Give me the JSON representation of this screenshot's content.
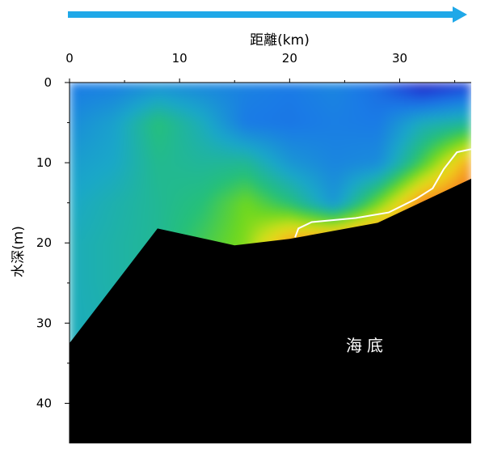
{
  "chart_data": {
    "type": "heatmap",
    "title": "",
    "xlabel": "距離(km)",
    "ylabel": "水深(m)",
    "xlim": [
      0,
      36.5
    ],
    "ylim": [
      0,
      45
    ],
    "x_ticks": [
      0,
      10,
      20,
      30
    ],
    "y_ticks": [
      0,
      10,
      20,
      30,
      40
    ],
    "x_tick_labels": [
      "0",
      "10",
      "20",
      "30"
    ],
    "y_tick_labels": [
      "0",
      "10",
      "20",
      "30",
      "40"
    ],
    "x_axis_position": "top",
    "y_axis_inverted": true,
    "grid": false,
    "direction_arrow": {
      "from_km": 0,
      "to_km": 36.5,
      "color": "#1FA8E8"
    },
    "seabed_label": "海底",
    "seabed_color": "#000000",
    "seabed_profile": [
      {
        "x": 0,
        "depth": 32.5
      },
      {
        "x": 8,
        "depth": 18.2
      },
      {
        "x": 15,
        "depth": 20.3
      },
      {
        "x": 20,
        "depth": 19.5
      },
      {
        "x": 28,
        "depth": 17.5
      },
      {
        "x": 36.5,
        "depth": 12.0
      }
    ],
    "contour_line": {
      "color": "#ffffff",
      "points": [
        {
          "x": 20.5,
          "depth": 19.3
        },
        {
          "x": 20.8,
          "depth": 18.2
        },
        {
          "x": 22,
          "depth": 17.4
        },
        {
          "x": 26,
          "depth": 16.9
        },
        {
          "x": 29,
          "depth": 16.2
        },
        {
          "x": 31.5,
          "depth": 14.5
        },
        {
          "x": 33,
          "depth": 13.2
        },
        {
          "x": 34,
          "depth": 10.8
        },
        {
          "x": 35.2,
          "depth": 8.7
        },
        {
          "x": 36.5,
          "depth": 8.3
        }
      ]
    },
    "colormap": [
      {
        "value": 0.0,
        "color": "#1A0A9E"
      },
      {
        "value": 0.12,
        "color": "#1F3FD6"
      },
      {
        "value": 0.25,
        "color": "#1A7BE6"
      },
      {
        "value": 0.38,
        "color": "#1AA8C8"
      },
      {
        "value": 0.5,
        "color": "#25C07A"
      },
      {
        "value": 0.6,
        "color": "#6FD81F"
      },
      {
        "value": 0.68,
        "color": "#C8E01A"
      },
      {
        "value": 0.76,
        "color": "#F0D21A"
      },
      {
        "value": 0.84,
        "color": "#F5A020"
      },
      {
        "value": 0.92,
        "color": "#F26A16"
      },
      {
        "value": 1.0,
        "color": "#E62B0D"
      }
    ],
    "field_x": [
      0,
      4,
      8,
      12,
      16,
      20,
      24,
      28,
      32,
      36.5
    ],
    "field_depth": [
      0,
      5,
      10,
      15,
      20,
      25,
      30,
      35
    ],
    "field_values": [
      [
        0.25,
        0.26,
        0.3,
        0.28,
        0.27,
        0.25,
        0.28,
        0.22,
        0.05,
        0.12
      ],
      [
        0.3,
        0.36,
        0.5,
        0.4,
        0.25,
        0.24,
        0.26,
        0.25,
        0.4,
        0.45
      ],
      [
        0.35,
        0.38,
        0.47,
        0.45,
        0.46,
        0.33,
        0.28,
        0.3,
        0.55,
        0.85
      ],
      [
        0.38,
        0.42,
        0.46,
        0.5,
        0.6,
        0.5,
        0.33,
        0.6,
        0.88,
        0.95
      ],
      [
        0.4,
        0.43,
        0.46,
        0.54,
        0.62,
        0.85,
        0.92,
        0.95,
        0.97,
        0.98
      ],
      [
        0.4,
        0.43,
        0.46,
        0.54,
        0.62,
        0.85,
        0.92,
        0.95,
        0.97,
        0.98
      ],
      [
        0.4,
        0.42,
        0.46,
        0.54,
        0.62,
        0.85,
        0.92,
        0.95,
        0.97,
        0.98
      ],
      [
        0.4,
        0.42,
        0.46,
        0.54,
        0.62,
        0.85,
        0.92,
        0.95,
        0.97,
        0.98
      ]
    ]
  }
}
